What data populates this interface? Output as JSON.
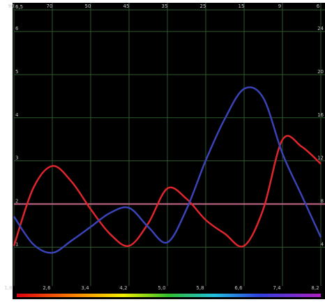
{
  "chart_data": {
    "type": "line",
    "x": [
      1.8,
      2.2,
      2.6,
      3.0,
      3.4,
      3.8,
      4.2,
      4.6,
      5.0,
      5.4,
      5.8,
      6.2,
      6.6,
      7.0,
      7.4,
      7.8,
      8.2
    ],
    "series": [
      {
        "color": "#e0262c",
        "values": [
          1.03,
          2.36,
          2.88,
          2.52,
          1.88,
          1.31,
          1.03,
          1.55,
          2.36,
          2.12,
          1.63,
          1.31,
          1.03,
          1.88,
          3.49,
          3.33,
          2.93
        ]
      },
      {
        "color": "#3a44b8",
        "values": [
          1.71,
          1.07,
          0.87,
          1.15,
          1.47,
          1.79,
          1.91,
          1.47,
          1.11,
          1.88,
          3.01,
          3.98,
          4.67,
          4.46,
          3.17,
          2.2,
          1.23
        ]
      }
    ],
    "hline": 2,
    "hline_color": "#c86a8c",
    "xlim": [
      1.8,
      8.2
    ],
    "xticks": [
      {
        "value": 1.8,
        "label": "1,8"
      },
      {
        "value": 2.6,
        "label": "2,6"
      },
      {
        "value": 3.4,
        "label": "3,4"
      },
      {
        "value": 4.2,
        "label": "4,2"
      },
      {
        "value": 5.0,
        "label": "5,0"
      },
      {
        "value": 5.8,
        "label": "5,8"
      },
      {
        "value": 6.6,
        "label": "6,6"
      },
      {
        "value": 7.4,
        "label": "7,4"
      },
      {
        "value": 8.2,
        "label": "8,2"
      }
    ],
    "x2tick_labels": [
      "90",
      "70",
      "50",
      "45",
      "35",
      "25",
      "15",
      "9",
      "6"
    ],
    "ylim": [
      0.1,
      6.6
    ],
    "yticks": [
      1,
      2,
      3,
      4,
      5,
      6,
      {
        "value": 6.5,
        "label": "6,5"
      }
    ],
    "y2lim": [
      0.4,
      26.4
    ],
    "y2ticks": [
      4,
      8,
      12,
      16,
      20,
      24
    ],
    "grid": true
  }
}
